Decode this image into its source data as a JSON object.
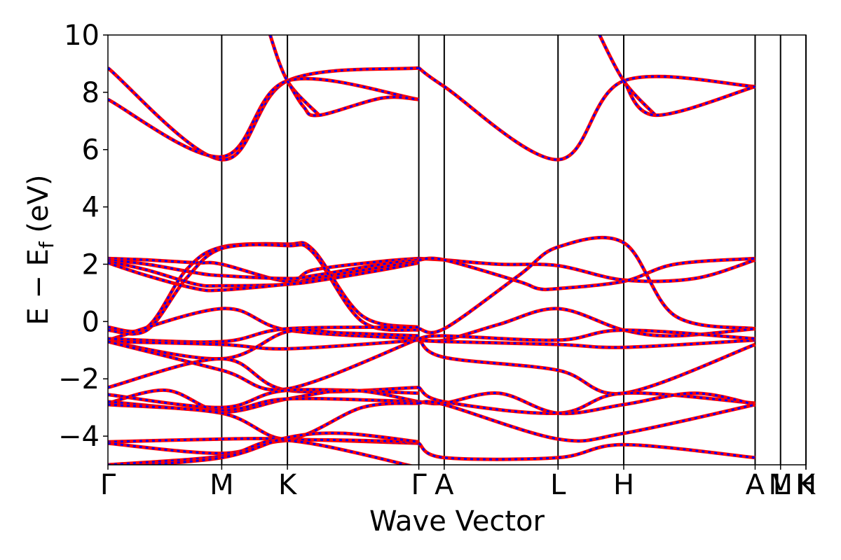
{
  "chart_data": {
    "type": "line",
    "xlabel": "Wave Vector",
    "ylabel": "E − E",
    "ylabel_sub": "f",
    "ylabel_unit": " (eV)",
    "ylim": [
      -5,
      10
    ],
    "yticks": [
      -4,
      -2,
      0,
      2,
      4,
      6,
      8,
      10
    ],
    "ytick_labels": [
      "−4",
      "−2",
      "0",
      "2",
      "4",
      "6",
      "8",
      "10"
    ],
    "kpath": [
      {
        "label": "Γ",
        "x": 0.0
      },
      {
        "label": "M",
        "x": 0.582
      },
      {
        "label": "K",
        "x": 0.918
      },
      {
        "label": "Γ",
        "x": 1.59
      },
      {
        "label": "A",
        "x": 1.72
      },
      {
        "label": "L",
        "x": 2.302
      },
      {
        "label": "H",
        "x": 2.638
      },
      {
        "label": "A",
        "x": 3.31
      },
      {
        "label": "L",
        "x": 3.44
      },
      {
        "label": "M",
        "x": 3.44
      },
      {
        "label": "H",
        "x": 3.57
      },
      {
        "label": "K",
        "x": 3.57
      }
    ],
    "xlim": [
      0.0,
      3.57
    ],
    "series_style": [
      {
        "color": "#ff0000",
        "style": "solid"
      },
      {
        "color": "#0000ff",
        "style": "dashed"
      }
    ],
    "bands": [
      {
        "x": [
          0,
          0.582,
          0.918,
          1.59
        ],
        "y": [
          8.85,
          5.65,
          8.4,
          8.85
        ]
      },
      {
        "x": [
          0,
          0.582,
          0.918,
          1.59
        ],
        "y": [
          7.75,
          5.75,
          8.4,
          7.75
        ]
      },
      {
        "x": [
          0.82,
          0.918,
          1.08
        ],
        "y": [
          10.2,
          8.4,
          7.2
        ]
      },
      {
        "x": [
          0.918,
          1.0,
          1.08,
          1.4,
          1.59
        ],
        "y": [
          8.4,
          7.5,
          7.2,
          7.8,
          7.75
        ]
      },
      {
        "x": [
          1.59,
          1.72,
          2.302,
          2.638,
          3.31
        ],
        "y": [
          8.85,
          8.2,
          5.65,
          8.4,
          8.2
        ]
      },
      {
        "x": [
          2.5,
          2.638,
          2.8
        ],
        "y": [
          10.2,
          8.4,
          7.2
        ]
      },
      {
        "x": [
          2.638,
          2.8,
          3.31
        ],
        "y": [
          8.4,
          7.2,
          8.2
        ]
      },
      {
        "x": [
          0,
          0.2,
          0.45,
          0.582,
          0.918,
          1.05,
          1.4,
          1.59
        ],
        "y": [
          2.2,
          2.15,
          2.05,
          2.0,
          1.4,
          1.8,
          2.1,
          2.2
        ]
      },
      {
        "x": [
          0,
          0.2,
          0.45,
          0.582,
          0.918,
          1.05,
          1.4,
          1.59
        ],
        "y": [
          2.15,
          2.0,
          1.7,
          1.6,
          1.5,
          1.6,
          2.0,
          2.15
        ]
      },
      {
        "x": [
          0,
          0.2,
          0.45,
          0.582,
          0.918,
          1.05,
          1.4,
          1.59
        ],
        "y": [
          2.1,
          1.8,
          1.3,
          1.25,
          1.3,
          1.5,
          1.9,
          2.1
        ]
      },
      {
        "x": [
          0,
          0.2,
          0.45,
          0.582,
          0.918,
          1.05,
          1.4,
          1.59
        ],
        "y": [
          2.05,
          1.6,
          1.15,
          1.1,
          1.3,
          1.4,
          1.8,
          2.05
        ]
      },
      {
        "x": [
          0,
          0.2,
          0.4,
          0.582,
          0.918,
          1.05,
          1.3,
          1.59
        ],
        "y": [
          -0.2,
          -0.2,
          1.8,
          2.6,
          2.7,
          2.5,
          0.2,
          -0.2
        ]
      },
      {
        "x": [
          0,
          0.2,
          0.4,
          0.582,
          0.918,
          1.05,
          1.3,
          1.59
        ],
        "y": [
          -0.3,
          -0.3,
          1.5,
          2.55,
          2.65,
          2.4,
          0.0,
          -0.3
        ]
      },
      {
        "x": [
          0,
          0.582,
          0.918,
          1.59
        ],
        "y": [
          -0.65,
          0.45,
          -0.3,
          -0.6
        ]
      },
      {
        "x": [
          0,
          0.582,
          0.918,
          1.59
        ],
        "y": [
          -0.6,
          -0.7,
          -0.25,
          -0.2
        ]
      },
      {
        "x": [
          0,
          0.582,
          0.918,
          1.59
        ],
        "y": [
          -0.7,
          -0.8,
          -0.95,
          -0.65
        ]
      },
      {
        "x": [
          0,
          0.582,
          0.918,
          1.2,
          1.59
        ],
        "y": [
          -0.7,
          -1.3,
          -0.35,
          -0.4,
          -0.5
        ]
      },
      {
        "x": [
          0,
          0.582,
          0.918,
          1.59
        ],
        "y": [
          -2.3,
          -1.3,
          -2.4,
          -2.3
        ]
      },
      {
        "x": [
          0,
          0.582,
          0.918,
          1.59
        ],
        "y": [
          -0.7,
          -1.7,
          -2.35,
          -0.6
        ]
      },
      {
        "x": [
          0,
          0.582,
          0.918,
          1.59
        ],
        "y": [
          -2.55,
          -3.0,
          -2.4,
          -2.5
        ]
      },
      {
        "x": [
          0,
          0.3,
          0.582,
          0.918,
          1.25,
          1.59
        ],
        "y": [
          -2.85,
          -2.4,
          -3.15,
          -2.7,
          -2.4,
          -2.8
        ]
      },
      {
        "x": [
          0,
          0.582,
          0.918,
          1.59
        ],
        "y": [
          -2.8,
          -3.1,
          -2.7,
          -2.8
        ]
      },
      {
        "x": [
          0,
          0.582,
          0.918,
          1.3,
          1.59
        ],
        "y": [
          -2.9,
          -3.2,
          -4.1,
          -3.0,
          -2.85
        ]
      },
      {
        "x": [
          0,
          0.582,
          0.918,
          1.59
        ],
        "y": [
          -4.2,
          -4.1,
          -4.1,
          -4.25
        ]
      },
      {
        "x": [
          0,
          0.582,
          0.918,
          1.59
        ],
        "y": [
          -4.25,
          -4.6,
          -4.15,
          -4.2
        ]
      },
      {
        "x": [
          0,
          0.582,
          0.918,
          1.59
        ],
        "y": [
          -5.0,
          -4.7,
          -4.15,
          -5.1
        ]
      },
      {
        "x": [
          0,
          0.582,
          0.918,
          1.2,
          1.59
        ],
        "y": [
          -5.1,
          -4.75,
          -4.05,
          -3.9,
          -4.2
        ]
      },
      {
        "x": [
          1.59,
          1.72,
          2.0,
          2.302,
          2.638,
          3.0,
          3.31
        ],
        "y": [
          2.2,
          2.15,
          2.0,
          1.95,
          1.45,
          1.5,
          2.15
        ]
      },
      {
        "x": [
          1.59,
          1.72,
          2.1,
          2.2,
          2.302,
          2.638,
          2.9,
          3.31
        ],
        "y": [
          2.15,
          2.15,
          1.4,
          1.15,
          1.15,
          1.4,
          2.0,
          2.2
        ]
      },
      {
        "x": [
          1.59,
          1.72,
          2.1,
          2.302,
          2.638,
          2.9,
          3.31
        ],
        "y": [
          -0.25,
          -0.25,
          1.6,
          2.6,
          2.75,
          0.2,
          -0.25
        ]
      },
      {
        "x": [
          1.59,
          1.72,
          2.0,
          2.302,
          2.638,
          2.9,
          3.31
        ],
        "y": [
          -0.6,
          -0.65,
          -0.1,
          0.45,
          -0.3,
          -0.5,
          -0.25
        ]
      },
      {
        "x": [
          1.59,
          1.72,
          2.302,
          2.638,
          3.31
        ],
        "y": [
          -0.65,
          -0.7,
          -0.8,
          -0.9,
          -0.65
        ]
      },
      {
        "x": [
          1.59,
          1.72,
          2.302,
          2.638,
          3.31
        ],
        "y": [
          -0.6,
          -1.25,
          -1.7,
          -2.5,
          -0.8
        ]
      },
      {
        "x": [
          1.59,
          1.72,
          2.302,
          2.638,
          3.31
        ],
        "y": [
          -0.6,
          -0.5,
          -0.65,
          -0.3,
          -0.6
        ]
      },
      {
        "x": [
          1.59,
          1.72,
          2.302,
          2.638,
          3.31
        ],
        "y": [
          -2.3,
          -2.8,
          -3.2,
          -2.5,
          -2.85
        ]
      },
      {
        "x": [
          1.59,
          1.72,
          2.0,
          2.302,
          2.638,
          3.0,
          3.31
        ],
        "y": [
          -2.8,
          -2.85,
          -2.5,
          -3.2,
          -2.9,
          -2.5,
          -2.9
        ]
      },
      {
        "x": [
          1.59,
          1.72,
          2.302,
          2.638,
          3.31
        ],
        "y": [
          -2.85,
          -2.9,
          -4.1,
          -3.9,
          -2.9
        ]
      },
      {
        "x": [
          1.59,
          1.72,
          2.302,
          2.638,
          3.31
        ],
        "y": [
          -4.25,
          -4.75,
          -4.75,
          -4.3,
          -4.75
        ]
      }
    ]
  }
}
